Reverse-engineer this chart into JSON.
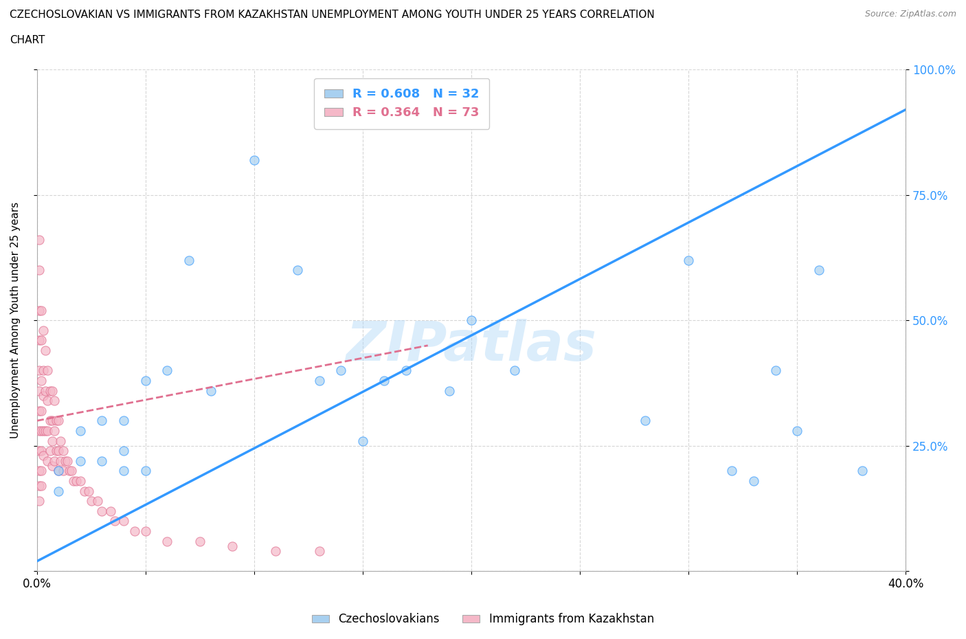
{
  "title_line1": "CZECHOSLOVAKIAN VS IMMIGRANTS FROM KAZAKHSTAN UNEMPLOYMENT AMONG YOUTH UNDER 25 YEARS CORRELATION",
  "title_line2": "CHART",
  "source": "Source: ZipAtlas.com",
  "ylabel_left": "Unemployment Among Youth under 25 years",
  "xlim": [
    0.0,
    0.4
  ],
  "ylim": [
    0.0,
    1.0
  ],
  "blue_color": "#a8d0f0",
  "pink_color": "#f5b8c8",
  "blue_line_color": "#3399ff",
  "pink_line_color": "#e07090",
  "legend_R_blue": "R = 0.608",
  "legend_N_blue": "N = 32",
  "legend_R_pink": "R = 0.364",
  "legend_N_pink": "N = 73",
  "legend_label_blue": "Czechoslovakians",
  "legend_label_pink": "Immigrants from Kazakhstan",
  "watermark": "ZIPatlas",
  "blue_regression_x0": 0.0,
  "blue_regression_y0": 0.02,
  "blue_regression_x1": 0.4,
  "blue_regression_y1": 0.92,
  "pink_regression_x0": 0.0,
  "pink_regression_y0": 0.3,
  "pink_regression_x1": 0.18,
  "pink_regression_y1": 0.45,
  "blue_x": [
    0.01,
    0.01,
    0.02,
    0.02,
    0.03,
    0.03,
    0.04,
    0.04,
    0.04,
    0.05,
    0.05,
    0.06,
    0.07,
    0.08,
    0.1,
    0.12,
    0.13,
    0.14,
    0.15,
    0.16,
    0.17,
    0.19,
    0.2,
    0.22,
    0.28,
    0.3,
    0.32,
    0.33,
    0.34,
    0.35,
    0.36,
    0.38
  ],
  "blue_y": [
    0.2,
    0.16,
    0.28,
    0.22,
    0.3,
    0.22,
    0.3,
    0.24,
    0.2,
    0.38,
    0.2,
    0.4,
    0.62,
    0.36,
    0.82,
    0.6,
    0.38,
    0.4,
    0.26,
    0.38,
    0.4,
    0.36,
    0.5,
    0.4,
    0.3,
    0.62,
    0.2,
    0.18,
    0.4,
    0.28,
    0.6,
    0.2
  ],
  "pink_x": [
    0.001,
    0.001,
    0.001,
    0.001,
    0.001,
    0.001,
    0.001,
    0.001,
    0.001,
    0.001,
    0.001,
    0.001,
    0.002,
    0.002,
    0.002,
    0.002,
    0.002,
    0.002,
    0.002,
    0.002,
    0.003,
    0.003,
    0.003,
    0.003,
    0.003,
    0.004,
    0.004,
    0.004,
    0.005,
    0.005,
    0.005,
    0.005,
    0.006,
    0.006,
    0.006,
    0.007,
    0.007,
    0.007,
    0.007,
    0.008,
    0.008,
    0.008,
    0.009,
    0.009,
    0.01,
    0.01,
    0.01,
    0.011,
    0.011,
    0.012,
    0.012,
    0.013,
    0.014,
    0.015,
    0.016,
    0.017,
    0.018,
    0.02,
    0.022,
    0.024,
    0.025,
    0.028,
    0.03,
    0.034,
    0.036,
    0.04,
    0.045,
    0.05,
    0.06,
    0.075,
    0.09,
    0.11,
    0.13
  ],
  "pink_y": [
    0.66,
    0.6,
    0.52,
    0.46,
    0.4,
    0.36,
    0.32,
    0.28,
    0.24,
    0.2,
    0.17,
    0.14,
    0.52,
    0.46,
    0.38,
    0.32,
    0.28,
    0.24,
    0.2,
    0.17,
    0.48,
    0.4,
    0.35,
    0.28,
    0.23,
    0.44,
    0.36,
    0.28,
    0.4,
    0.34,
    0.28,
    0.22,
    0.36,
    0.3,
    0.24,
    0.36,
    0.3,
    0.26,
    0.21,
    0.34,
    0.28,
    0.22,
    0.3,
    0.24,
    0.3,
    0.24,
    0.2,
    0.26,
    0.22,
    0.24,
    0.2,
    0.22,
    0.22,
    0.2,
    0.2,
    0.18,
    0.18,
    0.18,
    0.16,
    0.16,
    0.14,
    0.14,
    0.12,
    0.12,
    0.1,
    0.1,
    0.08,
    0.08,
    0.06,
    0.06,
    0.05,
    0.04,
    0.04
  ]
}
